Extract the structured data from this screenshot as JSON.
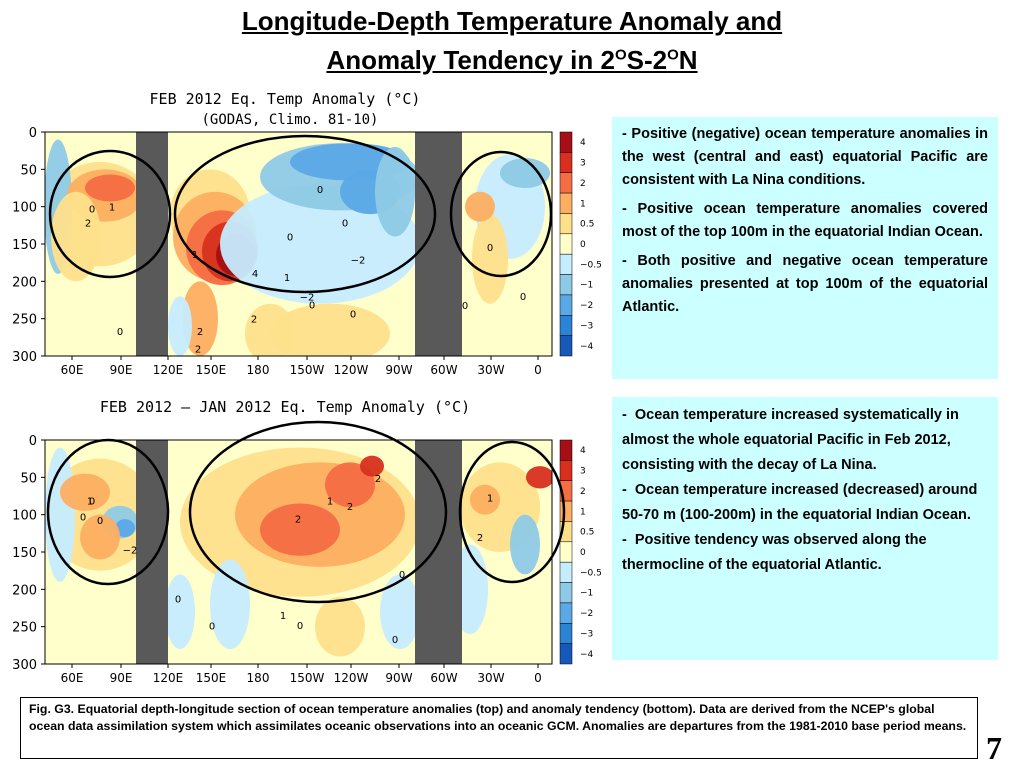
{
  "title": {
    "line1": "Longitude-Depth Temperature Anomaly and",
    "line2_part1": "Anomaly Tendency in 2",
    "sup1": "O",
    "line2_part2": "S-2",
    "sup2": "O",
    "line2_part3": "N"
  },
  "chart_data": [
    {
      "type": "heatmap",
      "title": "FEB 2012 Eq. Temp Anomaly (°C)",
      "subtitle": "(GODAS,  Climo. 81-10)",
      "xlabel": "",
      "ylabel": "",
      "x_ticks": [
        "60E",
        "90E",
        "120E",
        "150E",
        "180",
        "150W",
        "120W",
        "90W",
        "60W",
        "30W",
        "0"
      ],
      "y_ticks": [
        0,
        50,
        100,
        150,
        200,
        250,
        300
      ],
      "ylim": [
        300,
        0
      ],
      "colorbar": [
        4,
        3,
        2,
        1,
        0.5,
        0,
        -0.5,
        -1,
        -2,
        -3,
        -4
      ],
      "colorbar_labels": [
        "4",
        "3",
        "2",
        "1",
        "0.5",
        "0",
        "−0.5",
        "−1",
        "−2",
        "−3",
        "−4"
      ],
      "contour_labels": [
        "0",
        "1",
        "2",
        "1",
        "2",
        "4",
        "2",
        "1",
        "0",
        "−2",
        "−2",
        "0",
        "0",
        "0",
        "0",
        "0",
        "0",
        "0",
        "0",
        "2"
      ],
      "palette": {
        "4": "#a50f15",
        "3": "#d7301f",
        "2": "#f46d43",
        "1": "#fdae61",
        "0.5": "#fee08b",
        "0": "#ffffcc",
        "-0.5": "#c6ecff",
        "-1": "#8ecae6",
        "-2": "#5aa8e6",
        "-3": "#2b83d6",
        "-4": "#1659b8"
      },
      "land_color": "#595959"
    },
    {
      "type": "heatmap",
      "title": "FEB 2012 – JAN 2012 Eq. Temp Anomaly (°C)",
      "xlabel": "",
      "ylabel": "",
      "x_ticks": [
        "60E",
        "90E",
        "120E",
        "150E",
        "180",
        "150W",
        "120W",
        "90W",
        "60W",
        "30W",
        "0"
      ],
      "y_ticks": [
        0,
        50,
        100,
        150,
        200,
        250,
        300
      ],
      "ylim": [
        300,
        0
      ],
      "colorbar": [
        4,
        3,
        2,
        1,
        0.5,
        0,
        -0.5,
        -1,
        -2,
        -3,
        -4
      ],
      "colorbar_labels": [
        "4",
        "3",
        "2",
        "1",
        "0.5",
        "0",
        "−0.5",
        "−1",
        "−2",
        "−3",
        "−4"
      ],
      "contour_labels": [
        "0",
        "1",
        "0",
        "−2",
        "0",
        "1",
        "2",
        "2",
        "1",
        "2",
        "0",
        "0",
        "0",
        "1",
        "2",
        "0",
        "0"
      ],
      "palette": {
        "4": "#a50f15",
        "3": "#d7301f",
        "2": "#f46d43",
        "1": "#fdae61",
        "0.5": "#fee08b",
        "0": "#ffffcc",
        "-0.5": "#c6ecff",
        "-1": "#8ecae6",
        "-2": "#5aa8e6",
        "-3": "#2b83d6",
        "-4": "#1659b8"
      },
      "land_color": "#595959"
    }
  ],
  "box1": {
    "items": [
      "Positive (negative) ocean temperature anomalies in the west (central and east) equatorial Pacific are consistent with La Nina conditions.",
      "Positive ocean temperature anomalies covered most of the top 100m in the equatorial Indian Ocean.",
      "Both positive and negative ocean temperature anomalies presented at top 100m of the equatorial Atlantic."
    ]
  },
  "box2": {
    "items": [
      "Ocean temperature  increased systematically in almost the whole equatorial Pacific in Feb 2012, consisting with the decay  of La Nina.",
      "Ocean temperature increased (decreased)  around 50-70 m (100-200m) in the equatorial Indian Ocean.",
      "Positive tendency was observed along the thermocline of the equatorial Atlantic."
    ]
  },
  "caption": "Fig. G3. Equatorial depth-longitude section of ocean temperature anomalies (top) and anomaly tendency (bottom). Data are derived from the NCEP's global ocean data assimilation system which assimilates oceanic observations into an oceanic GCM. Anomalies are departures from the 1981-2010 base period means.",
  "page_number": "7"
}
